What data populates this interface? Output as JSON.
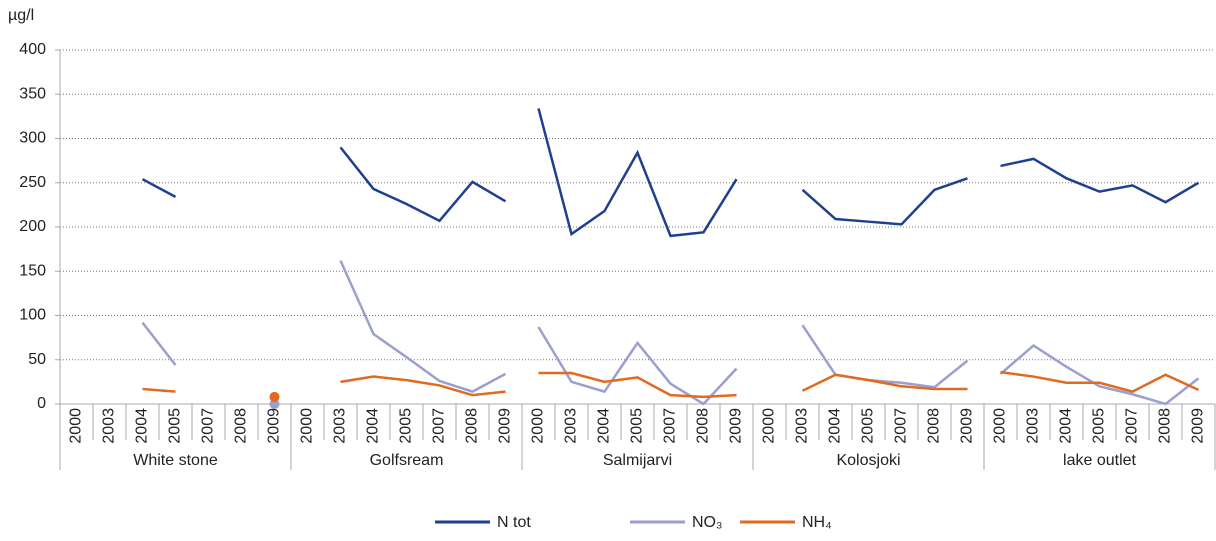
{
  "chart_data": {
    "type": "line",
    "y_label": "µg/l",
    "categories": [
      "2000",
      "2003",
      "2004",
      "2005",
      "2007",
      "2008",
      "2009",
      "2000",
      "2003",
      "2004",
      "2005",
      "2007",
      "2008",
      "2009",
      "2000",
      "2003",
      "2004",
      "2005",
      "2007",
      "2008",
      "2009",
      "2000",
      "2003",
      "2004",
      "2005",
      "2007",
      "2008",
      "2009",
      "2000",
      "2003",
      "2004",
      "2005",
      "2007",
      "2008",
      "2009"
    ],
    "groups": [
      "White stone",
      "Golfsream",
      "Salmijarvi",
      "Kolosjoki",
      "lake outlet"
    ],
    "series": [
      {
        "name": "N tot",
        "color": "#1f3f8f",
        "values": [
          null,
          null,
          254,
          234,
          null,
          null,
          null,
          null,
          290,
          243,
          226,
          207,
          251,
          229,
          334,
          192,
          218,
          284,
          190,
          194,
          254,
          null,
          242,
          209,
          206,
          203,
          242,
          255,
          269,
          277,
          255,
          240,
          247,
          228,
          250
        ]
      },
      {
        "name": "NO₃",
        "color": "#9a9fd0",
        "values": [
          null,
          null,
          92,
          44,
          null,
          null,
          0,
          null,
          162,
          79,
          53,
          26,
          14,
          34,
          87,
          25,
          14,
          69,
          23,
          0,
          40,
          null,
          89,
          33,
          27,
          24,
          19,
          49,
          34,
          66,
          42,
          20,
          11,
          0,
          29
        ]
      },
      {
        "name": "NH₄",
        "color": "#e06a1f",
        "values": [
          null,
          null,
          17,
          14,
          null,
          null,
          8,
          null,
          25,
          31,
          27,
          21,
          10,
          14,
          35,
          35,
          25,
          30,
          10,
          8,
          10,
          null,
          15,
          33,
          27,
          20,
          17,
          17,
          36,
          31,
          24,
          24,
          14,
          33,
          16
        ]
      }
    ],
    "ylim": [
      0,
      400
    ],
    "yticks": [
      0,
      50,
      100,
      150,
      200,
      250,
      300,
      350,
      400
    ],
    "grid": true,
    "legend": "bottom"
  }
}
